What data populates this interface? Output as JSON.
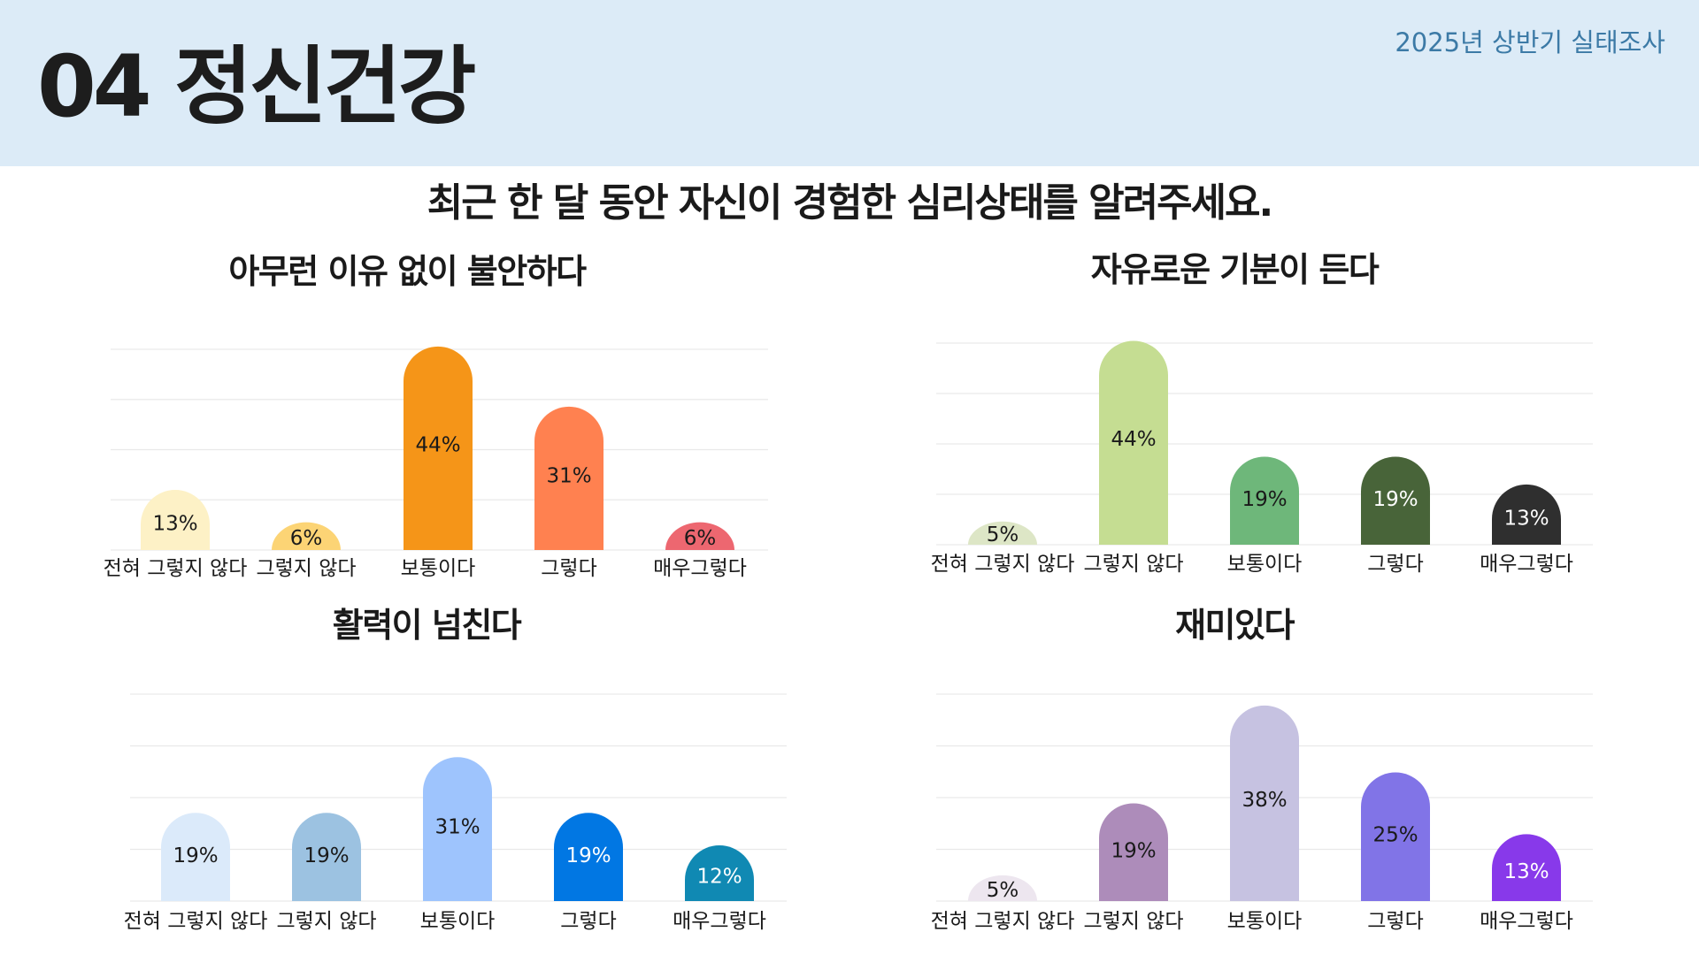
{
  "header": {
    "title": "04 정신건강",
    "survey_label": "2025년 상반기 실태조사"
  },
  "question": "최근 한 달 동안 자신이 경험한 심리상태를 알려주세요.",
  "chart_data": [
    {
      "type": "bar",
      "title": "아무런 이유 없이 불안하다",
      "categories": [
        "전혀 그렇지 않다",
        "그렇지 않다",
        "보통이다",
        "그렇다",
        "매우그렇다"
      ],
      "values": [
        13,
        6,
        44,
        31,
        6
      ],
      "value_labels": [
        "13%",
        "6%",
        "44%",
        "31%",
        "6%"
      ],
      "colors": [
        "#fdf1c6",
        "#fcd475",
        "#f59518",
        "#ff8150",
        "#ed6770"
      ],
      "grid": true
    },
    {
      "type": "bar",
      "title": "자유로운 기분이 든다",
      "categories": [
        "전혀 그렇지 않다",
        "그렇지 않다",
        "보통이다",
        "그렇다",
        "매우그렇다"
      ],
      "values": [
        5,
        44,
        19,
        19,
        13
      ],
      "value_labels": [
        "5%",
        "44%",
        "19%",
        "19%",
        "13%"
      ],
      "colors": [
        "#dde6c6",
        "#c5dd92",
        "#6eb77a",
        "#486439",
        "#2f2f2f"
      ],
      "grid": true
    },
    {
      "type": "bar",
      "title": "활력이 넘친다",
      "categories": [
        "전혀 그렇지 않다",
        "그렇지 않다",
        "보통이다",
        "그렇다",
        "매우그렇다"
      ],
      "values": [
        19,
        19,
        31,
        19,
        12
      ],
      "value_labels": [
        "19%",
        "19%",
        "31%",
        "19%",
        "12%"
      ],
      "colors": [
        "#dbeafa",
        "#9cc2e1",
        "#9ec4fd",
        "#0177e3",
        "#1089b3"
      ],
      "grid": true
    },
    {
      "type": "bar",
      "title": "재미있다",
      "categories": [
        "전혀 그렇지 않다",
        "그렇지 않다",
        "보통이다",
        "그렇다",
        "매우그렇다"
      ],
      "values": [
        5,
        19,
        38,
        25,
        13
      ],
      "value_labels": [
        "5%",
        "19%",
        "38%",
        "25%",
        "13%"
      ],
      "colors": [
        "#ede6ef",
        "#ad8cba",
        "#c6c2e1",
        "#8174e7",
        "#8839ea"
      ],
      "grid": true
    }
  ]
}
